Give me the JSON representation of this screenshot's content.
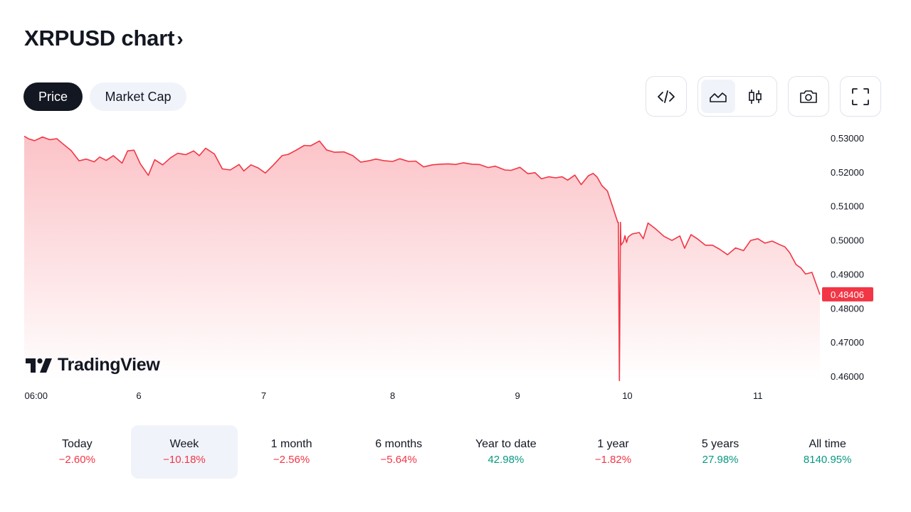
{
  "header": {
    "title": "XRPUSD chart",
    "chevron": "›"
  },
  "tabs": [
    {
      "label": "Price",
      "active": true
    },
    {
      "label": "Market Cap",
      "active": false
    }
  ],
  "toolbar": {
    "embed_icon": "code-embed-icon",
    "area_icon": "area-chart-icon",
    "candles_icon": "candlestick-icon",
    "camera_icon": "camera-icon",
    "fullscreen_icon": "fullscreen-icon"
  },
  "logo": {
    "text": "TradingView"
  },
  "colors": {
    "line": "#f23645",
    "positive": "#089981",
    "negative": "#f23645",
    "active_bg": "#f0f3fa",
    "text": "#131722"
  },
  "chart_data": {
    "type": "area",
    "symbol": "XRPUSD",
    "ylim": [
      0.4565,
      0.5315
    ],
    "y_ticks": [
      "0.53000",
      "0.52000",
      "0.51000",
      "0.50000",
      "0.49000",
      "0.48000",
      "0.47000",
      "0.46000"
    ],
    "x_ticks": [
      "06:00",
      "6",
      "7",
      "8",
      "9",
      "10",
      "11"
    ],
    "last_value": "0.48406",
    "grid": false,
    "x_domain": [
      0,
      100
    ],
    "x_tick_positions": [
      1.5,
      14.4,
      30.1,
      46.3,
      62.0,
      75.8,
      92.2
    ],
    "series": [
      {
        "x": [
          0,
          0.6,
          1.3,
          2.3,
          3.2,
          4.1,
          4.8,
          5.9,
          6.9,
          7.8,
          8.8,
          9.5,
          10.3,
          11.2,
          12.3,
          13.0,
          13.8,
          14.6,
          15.6,
          16.4,
          17.4,
          18.4,
          19.3,
          20.3,
          21.3,
          22.0,
          22.8,
          23.9,
          24.9,
          25.9,
          27.0,
          27.6,
          28.5,
          29.4,
          30.3,
          31.3,
          32.4,
          33.2,
          34.1,
          35.2,
          36.0,
          37.1,
          38.0,
          39.0,
          40.2,
          41.3,
          42.3,
          43.3,
          44.2,
          45.3,
          46.3,
          47.2,
          48.3,
          49.2,
          50.2,
          51.3,
          52.2,
          53.3,
          54.2,
          55.2,
          56.3,
          57.2,
          58.3,
          59.2,
          60.4,
          61.2,
          62.3,
          63.3,
          64.2,
          65.0,
          65.9,
          66.8,
          67.6,
          68.3,
          69.2,
          70.0,
          70.9,
          71.5,
          72.0,
          72.6,
          73.3,
          74.0,
          74.6,
          75.0,
          75.3,
          75.5,
          75.7,
          75.9,
          76.4,
          77.3,
          77.8,
          78.4,
          79.4,
          80.4,
          81.4,
          82.4,
          83.0,
          83.8,
          84.7,
          85.6,
          86.5,
          87.4,
          88.4,
          89.4,
          90.4,
          91.3,
          92.2,
          93.1,
          94.0,
          94.9,
          95.6,
          96.2,
          97.0,
          97.6,
          98.2,
          99.0,
          100
        ],
        "y": [
          0.5305,
          0.5297,
          0.5292,
          0.5303,
          0.5295,
          0.5298,
          0.5284,
          0.5263,
          0.5233,
          0.5238,
          0.523,
          0.5244,
          0.5234,
          0.5248,
          0.5226,
          0.5262,
          0.5264,
          0.5224,
          0.519,
          0.5236,
          0.5221,
          0.5242,
          0.5255,
          0.5251,
          0.5262,
          0.5248,
          0.527,
          0.5253,
          0.5209,
          0.5206,
          0.5222,
          0.5203,
          0.5221,
          0.5212,
          0.5197,
          0.522,
          0.5248,
          0.5252,
          0.5263,
          0.5278,
          0.5277,
          0.5291,
          0.5265,
          0.5258,
          0.5259,
          0.5248,
          0.5229,
          0.5233,
          0.5238,
          0.5233,
          0.5231,
          0.5239,
          0.5231,
          0.5232,
          0.5215,
          0.5221,
          0.5223,
          0.5224,
          0.5222,
          0.5227,
          0.5223,
          0.5222,
          0.5213,
          0.5217,
          0.5206,
          0.5205,
          0.5214,
          0.5195,
          0.5198,
          0.518,
          0.5186,
          0.5183,
          0.5186,
          0.5176,
          0.5191,
          0.5163,
          0.5189,
          0.5196,
          0.5185,
          0.516,
          0.5144,
          0.5095,
          0.5052,
          0.4985,
          0.4995,
          0.5013,
          0.4993,
          0.5009,
          0.5018,
          0.5022,
          0.5004,
          0.505,
          0.5032,
          0.5011,
          0.4999,
          0.5012,
          0.4976,
          0.5016,
          0.5002,
          0.4985,
          0.4985,
          0.4973,
          0.4957,
          0.4977,
          0.4969,
          0.4999,
          0.5004,
          0.4991,
          0.4997,
          0.4987,
          0.498,
          0.4963,
          0.4928,
          0.4918,
          0.49,
          0.4905,
          0.484
        ]
      }
    ],
    "spike": {
      "x": 74.8,
      "y_low": 0.4587
    }
  },
  "periods": [
    {
      "label": "Today",
      "value": "−2.60%",
      "direction": "negative",
      "active": false
    },
    {
      "label": "Week",
      "value": "−10.18%",
      "direction": "negative",
      "active": true
    },
    {
      "label": "1 month",
      "value": "−2.56%",
      "direction": "negative",
      "active": false
    },
    {
      "label": "6 months",
      "value": "−5.64%",
      "direction": "negative",
      "active": false
    },
    {
      "label": "Year to date",
      "value": "42.98%",
      "direction": "positive",
      "active": false
    },
    {
      "label": "1 year",
      "value": "−1.82%",
      "direction": "negative",
      "active": false
    },
    {
      "label": "5 years",
      "value": "27.98%",
      "direction": "positive",
      "active": false
    },
    {
      "label": "All time",
      "value": "8140.95%",
      "direction": "positive",
      "active": false
    }
  ]
}
